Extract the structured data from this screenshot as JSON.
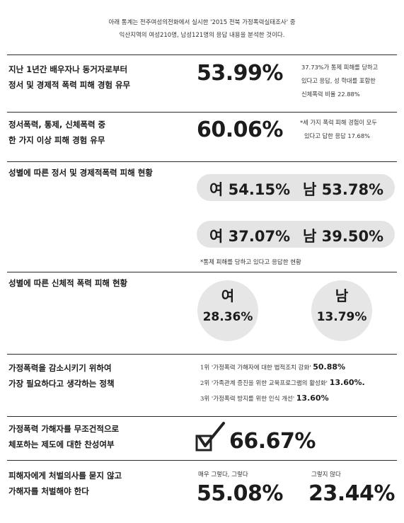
{
  "intro": {
    "line1": "아래 통계는 전주여성의전화에서 실시한 '2015 전북 가정폭력실태조사' 중",
    "line2": "익산지역의 여성210명, 남성121명의 응답 내용을 분석한 것이다."
  },
  "sections": {
    "s1": {
      "q1": "지난 1년간 배우자나 동거자로부터",
      "q2": "정서 및 경제적 폭력 피해 경험 유무",
      "value": "53.99%",
      "note1": "37.73%가 통제 피해를 당하고",
      "note2": "있다고 응답, 성 학대를 포함한",
      "note3": "신체폭력 비율 22.88%"
    },
    "s2": {
      "q1": "정서폭력, 통제, 신체폭력 중",
      "q2": "한 가지 이상 피해 경험 유무",
      "value": "60.06%",
      "note1": "*세 가지 폭력 피해 경험이 모두",
      "note2": "있다고 답한 응답 17.68%"
    },
    "s3": {
      "q1": "성별에 따른 정서 및 경제적폭력 피해 현황",
      "row1_female": "여 54.15%",
      "row1_male": "남 53.78%",
      "row2_female": "여 37.07%",
      "row2_male": "남 39.50%",
      "footnote": "*통제 피해를 당하고 있다고 응답한 현황"
    },
    "s4": {
      "q1": "성별에 따른 신체적 폭력 피해 현황",
      "female_label": "여",
      "female_value": "28.36%",
      "male_label": "남",
      "male_value": "13.79%"
    },
    "s5": {
      "q1": "가정폭력을 감소시키기 위하여",
      "q2": "가장 필요하다고 생각하는 정책",
      "rank1_text": "1위 '가정폭력 가해자에 대한 법적조치 강화'",
      "rank1_value": "50.88%",
      "rank2_text": "2위 '가족관계 증진을 위한 교육프로그램의 활성화'",
      "rank2_value": "13.60%.",
      "rank3_text": "3위 '가정폭력 방지를 위한 인식 개선'",
      "rank3_value": "13.60%"
    },
    "s6": {
      "q1": "가정폭력 가해자를 무조건적으로",
      "q2": "체포하는 제도에 대한 찬성여부",
      "value": "66.67%",
      "icon": "checkbox-check-icon"
    },
    "s7": {
      "q1": "피해자에게 처벌의사를 묻지 않고",
      "q2": "가해자를 처벌해야 한다",
      "agree_label": "매우 그렇다, 그렇다",
      "agree_value": "55.08%",
      "disagree_label": "그렇지 않다",
      "disagree_value": "23.44%"
    }
  }
}
